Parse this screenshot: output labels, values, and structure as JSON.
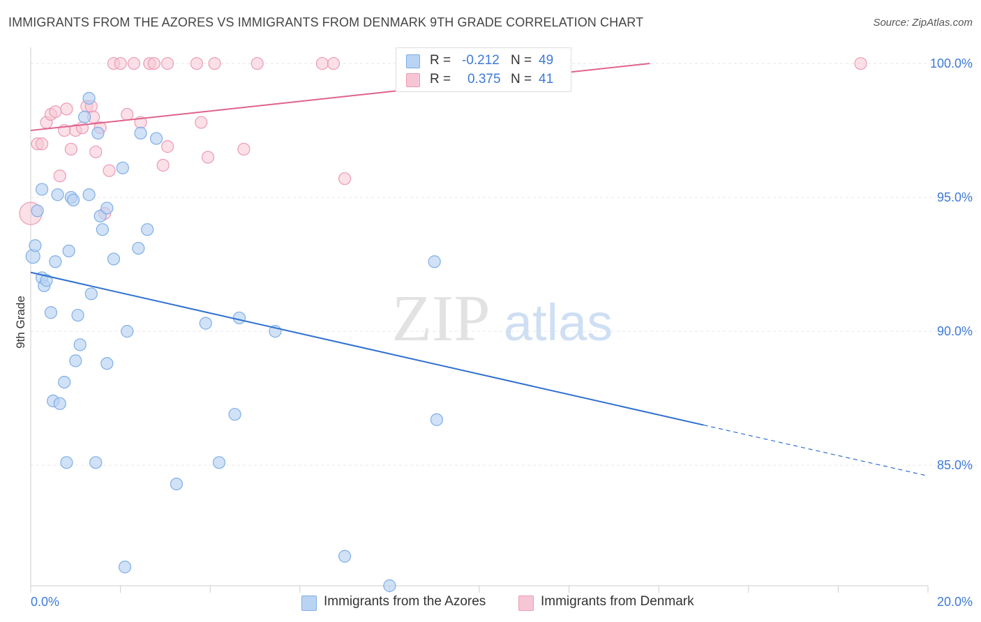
{
  "title": "IMMIGRANTS FROM THE AZORES VS IMMIGRANTS FROM DENMARK 9TH GRADE CORRELATION CHART",
  "source": "Source: ZipAtlas.com",
  "watermark": {
    "zip": "ZIP",
    "atlas": "atlas"
  },
  "colors": {
    "blue_fill": "#b9d3f3",
    "blue_stroke": "#7eaee6",
    "blue_line": "#2f6fd0",
    "pink_fill": "#f7c6d4",
    "pink_stroke": "#ec9ab4",
    "pink_line": "#e0628c",
    "axis_text": "#3d7ad8"
  },
  "stats": [
    {
      "r_label": "R =",
      "r_value": "-0.212",
      "n_label": "N =",
      "n_value": "49"
    },
    {
      "r_label": "R =",
      "r_value": "0.375",
      "n_label": "N =",
      "n_value": "41"
    }
  ],
  "legend": [
    {
      "label": "Immigrants from the Azores"
    },
    {
      "label": "Immigrants from Denmark"
    }
  ],
  "chart_data": {
    "type": "scatter",
    "title": "IMMIGRANTS FROM THE AZORES VS IMMIGRANTS FROM DENMARK 9TH GRADE CORRELATION CHART",
    "xlabel": "",
    "ylabel": "9th Grade",
    "xlim": [
      0,
      20
    ],
    "ylim": [
      80.5,
      100.6
    ],
    "x_tick_labels": [
      "0.0%",
      "20.0%"
    ],
    "y_ticks": [
      85,
      90,
      95,
      100
    ],
    "y_tick_labels": [
      "85.0%",
      "90.0%",
      "95.0%",
      "100.0%"
    ],
    "grid": true,
    "legend_position": "bottom-center",
    "series": [
      {
        "name": "Immigrants from the Azores",
        "r": -0.212,
        "n": 49,
        "trend": {
          "x_start": 0,
          "y_start": 92.2,
          "x_solid_end": 15.0,
          "y_solid_end": 86.5,
          "x_end": 20.0,
          "y_end": 84.6
        },
        "points": [
          [
            0.05,
            92.8
          ],
          [
            0.1,
            93.2
          ],
          [
            0.15,
            94.5
          ],
          [
            0.25,
            95.3
          ],
          [
            0.25,
            92.0
          ],
          [
            0.3,
            91.7
          ],
          [
            0.35,
            91.9
          ],
          [
            0.45,
            90.7
          ],
          [
            0.5,
            87.4
          ],
          [
            0.55,
            92.6
          ],
          [
            0.6,
            95.1
          ],
          [
            0.65,
            87.3
          ],
          [
            0.75,
            88.1
          ],
          [
            0.8,
            85.1
          ],
          [
            0.85,
            93.0
          ],
          [
            0.9,
            95.0
          ],
          [
            0.95,
            94.9
          ],
          [
            1.0,
            88.9
          ],
          [
            1.05,
            90.6
          ],
          [
            1.1,
            89.5
          ],
          [
            1.2,
            98.0
          ],
          [
            1.3,
            98.7
          ],
          [
            1.3,
            95.1
          ],
          [
            1.35,
            91.4
          ],
          [
            1.45,
            85.1
          ],
          [
            1.5,
            97.4
          ],
          [
            1.55,
            94.3
          ],
          [
            1.6,
            93.8
          ],
          [
            1.7,
            94.6
          ],
          [
            1.7,
            88.8
          ],
          [
            1.85,
            92.7
          ],
          [
            2.05,
            96.1
          ],
          [
            2.1,
            81.2
          ],
          [
            2.15,
            90.0
          ],
          [
            2.4,
            93.1
          ],
          [
            2.45,
            97.4
          ],
          [
            2.6,
            93.8
          ],
          [
            2.8,
            97.2
          ],
          [
            3.25,
            84.3
          ],
          [
            3.9,
            90.3
          ],
          [
            4.2,
            85.1
          ],
          [
            4.55,
            86.9
          ],
          [
            4.65,
            90.5
          ],
          [
            5.45,
            90.0
          ],
          [
            7.0,
            81.6
          ],
          [
            8.0,
            80.5
          ],
          [
            9.0,
            92.6
          ],
          [
            9.05,
            86.7
          ],
          [
            11.05,
            100.0
          ]
        ]
      },
      {
        "name": "Immigrants from Denmark",
        "r": 0.375,
        "n": 41,
        "trend": {
          "x_start": 0,
          "y_start": 97.5,
          "x_end": 13.8,
          "y_end": 100.0
        },
        "points": [
          [
            0.0,
            94.4
          ],
          [
            0.15,
            97.0
          ],
          [
            0.25,
            97.0
          ],
          [
            0.35,
            97.8
          ],
          [
            0.45,
            98.1
          ],
          [
            0.55,
            98.2
          ],
          [
            0.65,
            95.8
          ],
          [
            0.75,
            97.5
          ],
          [
            0.8,
            98.3
          ],
          [
            0.9,
            96.8
          ],
          [
            1.0,
            97.5
          ],
          [
            1.15,
            97.6
          ],
          [
            1.25,
            98.4
          ],
          [
            1.35,
            98.4
          ],
          [
            1.4,
            98.0
          ],
          [
            1.45,
            96.7
          ],
          [
            1.55,
            97.6
          ],
          [
            1.65,
            94.4
          ],
          [
            1.75,
            96.0
          ],
          [
            1.85,
            100.0
          ],
          [
            2.0,
            100.0
          ],
          [
            2.15,
            98.1
          ],
          [
            2.3,
            100.0
          ],
          [
            2.45,
            97.8
          ],
          [
            2.65,
            100.0
          ],
          [
            2.75,
            100.0
          ],
          [
            2.95,
            96.2
          ],
          [
            3.05,
            96.9
          ],
          [
            3.05,
            100.0
          ],
          [
            3.7,
            100.0
          ],
          [
            3.8,
            97.8
          ],
          [
            3.95,
            96.5
          ],
          [
            4.1,
            100.0
          ],
          [
            4.75,
            96.8
          ],
          [
            5.05,
            100.0
          ],
          [
            6.5,
            100.0
          ],
          [
            6.75,
            100.0
          ],
          [
            7.0,
            95.7
          ],
          [
            8.3,
            100.0
          ],
          [
            8.9,
            100.0
          ],
          [
            18.5,
            100.0
          ]
        ]
      }
    ]
  }
}
